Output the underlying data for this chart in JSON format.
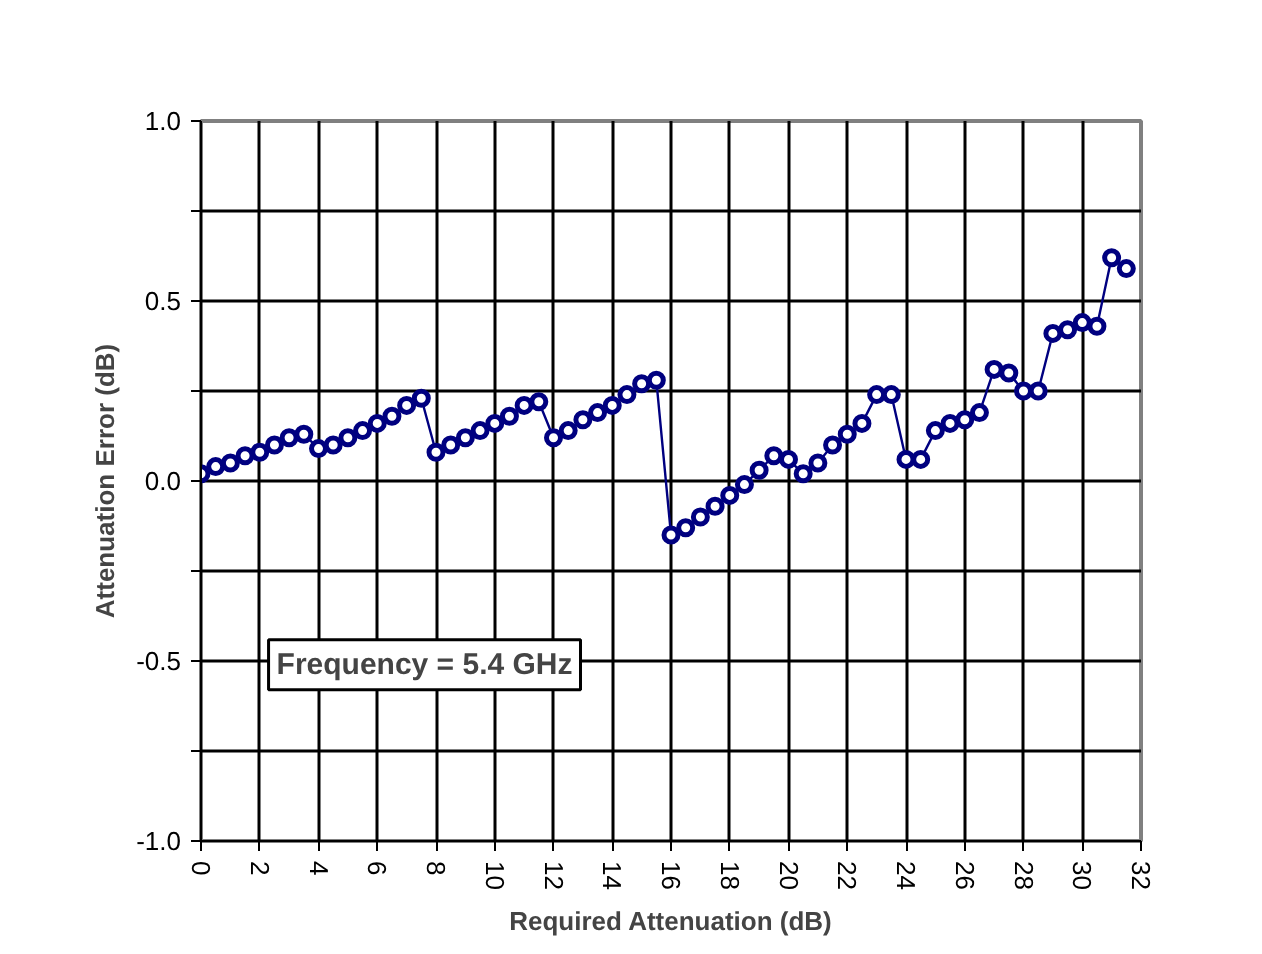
{
  "chart_data": {
    "type": "line",
    "xlabel": "Required Attenuation (dB)",
    "ylabel": "Attenuation Error (dB)",
    "annotations": [
      "Frequency = 5.4 GHz"
    ],
    "x": [
      0,
      0.5,
      1,
      1.5,
      2,
      2.5,
      3,
      3.5,
      4,
      4.5,
      5,
      5.5,
      6,
      6.5,
      7,
      7.5,
      8,
      8.5,
      9,
      9.5,
      10,
      10.5,
      11,
      11.5,
      12,
      12.5,
      13,
      13.5,
      14,
      14.5,
      15,
      15.5,
      16,
      16.5,
      17,
      17.5,
      18,
      18.5,
      19,
      19.5,
      20,
      20.5,
      21,
      21.5,
      22,
      22.5,
      23,
      23.5,
      24,
      24.5,
      25,
      25.5,
      26,
      26.5,
      27,
      27.5,
      28,
      28.5,
      29,
      29.5,
      30,
      30.5,
      31,
      31.5
    ],
    "series": [
      {
        "color": "#000080",
        "values": [
          0.02,
          0.04,
          0.05,
          0.07,
          0.08,
          0.1,
          0.12,
          0.13,
          0.09,
          0.1,
          0.12,
          0.14,
          0.16,
          0.18,
          0.21,
          0.23,
          0.08,
          0.1,
          0.12,
          0.14,
          0.16,
          0.18,
          0.21,
          0.22,
          0.12,
          0.14,
          0.17,
          0.19,
          0.21,
          0.24,
          0.27,
          0.28,
          -0.15,
          -0.13,
          -0.1,
          -0.07,
          -0.04,
          -0.01,
          0.03,
          0.07,
          0.06,
          0.02,
          0.05,
          0.1,
          0.13,
          0.16,
          0.24,
          0.24,
          0.06,
          0.06,
          0.14,
          0.16,
          0.17,
          0.19,
          0.31,
          0.3,
          0.25,
          0.25,
          0.41,
          0.42,
          0.44,
          0.43,
          0.62,
          0.59
        ]
      }
    ],
    "xlim": [
      0,
      32
    ],
    "xticks": [
      0,
      2,
      4,
      6,
      8,
      10,
      12,
      14,
      16,
      18,
      20,
      22,
      24,
      26,
      28,
      30,
      32
    ],
    "ylim": [
      -1.0,
      1.0
    ],
    "yticks": [
      {
        "value": -1.0,
        "label": "-1.0"
      },
      {
        "value": -0.75,
        "label": null
      },
      {
        "value": -0.5,
        "label": "-0.5"
      },
      {
        "value": -0.25,
        "label": null
      },
      {
        "value": 0.0,
        "label": "0.0"
      },
      {
        "value": 0.25,
        "label": null
      },
      {
        "value": 0.5,
        "label": "0.5"
      },
      {
        "value": 0.75,
        "label": null
      },
      {
        "value": 1.0,
        "label": "1.0"
      }
    ],
    "grid": true,
    "marker": "circle",
    "line_style": "solid"
  }
}
